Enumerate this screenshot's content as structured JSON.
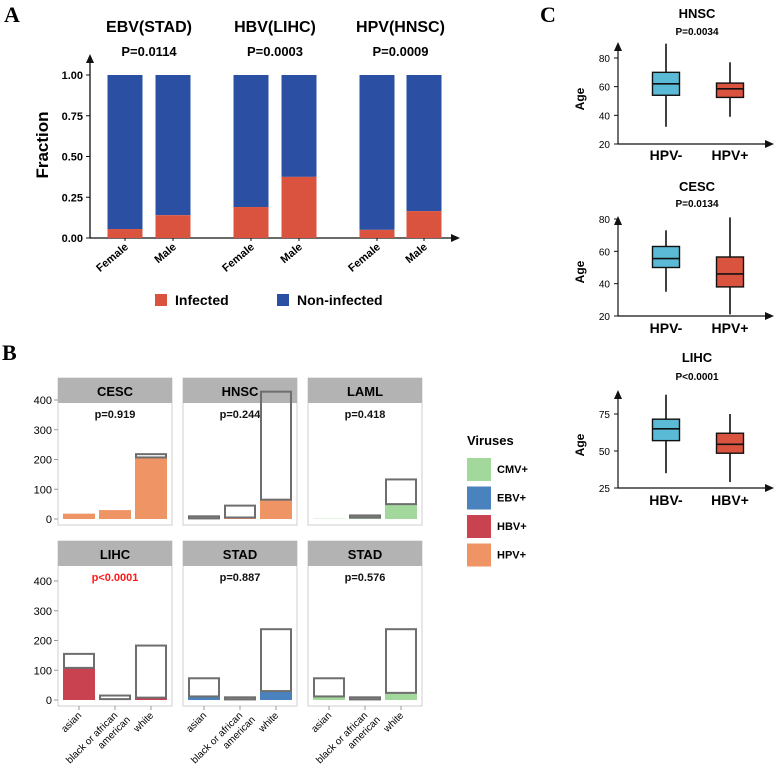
{
  "panel_labels": [
    "A",
    "B",
    "C"
  ],
  "chart_data": [
    {
      "type": "bar",
      "stacked": true,
      "ylabel": "Fraction",
      "ylim": [
        0,
        1
      ],
      "yticks": [
        "0.00",
        "0.25",
        "0.50",
        "0.75",
        "1.00"
      ],
      "colors": {
        "Infected": "#d9533f",
        "Non-infected": "#2a4fa3"
      },
      "legend": [
        "Infected",
        "Non-infected"
      ],
      "groups": [
        {
          "title": "EBV(STAD)",
          "p": "P=0.0114",
          "categories": [
            "Female",
            "Male"
          ],
          "infected": [
            0.055,
            0.14
          ]
        },
        {
          "title": "HBV(LIHC)",
          "p": "P=0.0003",
          "categories": [
            "Female",
            "Male"
          ],
          "infected": [
            0.19,
            0.375
          ]
        },
        {
          "title": "HPV(HNSC)",
          "p": "P=0.0009",
          "categories": [
            "Female",
            "Male"
          ],
          "infected": [
            0.05,
            0.165
          ]
        }
      ]
    },
    {
      "type": "bar",
      "faceted": true,
      "ylim": [
        0,
        450
      ],
      "yticks": [
        "0",
        "100",
        "200",
        "300",
        "400"
      ],
      "categories": [
        "asian",
        "black or african american",
        "white"
      ],
      "category_lines": [
        [
          "asian"
        ],
        [
          "black or african",
          "american"
        ],
        [
          "white"
        ]
      ],
      "legend_title": "Viruses",
      "legend": [
        {
          "name": "CMV+",
          "color": "#a3d89d"
        },
        {
          "name": "EBV+",
          "color": "#4a82bd"
        },
        {
          "name": "HBV+",
          "color": "#c8434f"
        },
        {
          "name": "HPV+",
          "color": "#ef9565"
        }
      ],
      "facets": [
        {
          "title": "CESC",
          "p": "p=0.919",
          "p_significant": false,
          "virus": "HPV+",
          "total": [
            18,
            30,
            218
          ],
          "infected": [
            18,
            30,
            207
          ]
        },
        {
          "title": "HNSC",
          "p": "p=0.244",
          "p_significant": false,
          "virus": "HPV+",
          "total": [
            9,
            45,
            428
          ],
          "infected": [
            2,
            5,
            65
          ]
        },
        {
          "title": "LAML",
          "p": "p=0.418",
          "p_significant": false,
          "virus": "CMV+",
          "total": [
            1,
            12,
            133
          ],
          "infected": [
            1,
            5,
            50
          ]
        },
        {
          "title": "LIHC",
          "p": "p<0.0001",
          "p_significant": true,
          "virus": "HBV+",
          "total": [
            155,
            15,
            183
          ],
          "infected": [
            108,
            3,
            8
          ]
        },
        {
          "title": "STAD",
          "p": "p=0.887",
          "p_significant": false,
          "virus": "EBV+",
          "total": [
            73,
            9,
            238
          ],
          "infected": [
            12,
            2,
            30
          ]
        },
        {
          "title": "STAD",
          "p": "p=0.576",
          "p_significant": false,
          "virus": "CMV+",
          "total": [
            73,
            9,
            238
          ],
          "infected": [
            12,
            2,
            24
          ]
        }
      ]
    },
    {
      "type": "boxplot",
      "ylabel": "Age",
      "colors": {
        "negative": "#5bbad6",
        "positive": "#d9533f"
      },
      "plots": [
        {
          "title": "HNSC",
          "p": "P=0.0034",
          "ylim": [
            20,
            90
          ],
          "yticks": [
            20,
            40,
            60,
            80
          ],
          "boxes": [
            {
              "label": "HPV-",
              "min": 32,
              "q1": 54,
              "median": 62,
              "q3": 70,
              "max": 90
            },
            {
              "label": "HPV+",
              "min": 39,
              "q1": 52.5,
              "median": 58.5,
              "q3": 62.5,
              "max": 77
            }
          ]
        },
        {
          "title": "CESC",
          "p": "P=0.0134",
          "ylim": [
            20,
            82
          ],
          "yticks": [
            20,
            40,
            60,
            80
          ],
          "boxes": [
            {
              "label": "HPV-",
              "min": 35,
              "q1": 50,
              "median": 55.5,
              "q3": 63,
              "max": 73
            },
            {
              "label": "HPV+",
              "min": 21,
              "q1": 38,
              "median": 46,
              "q3": 56.5,
              "max": 81
            }
          ]
        },
        {
          "title": "LIHC",
          "p": "P<0.0001",
          "ylim": [
            25,
            92
          ],
          "yticks": [
            25,
            50,
            75
          ],
          "boxes": [
            {
              "label": "HBV-",
              "min": 35,
              "q1": 57,
              "median": 65,
              "q3": 71.5,
              "max": 88
            },
            {
              "label": "HBV+",
              "min": 29,
              "q1": 48.5,
              "median": 54.5,
              "q3": 62,
              "max": 75
            }
          ]
        }
      ]
    }
  ]
}
